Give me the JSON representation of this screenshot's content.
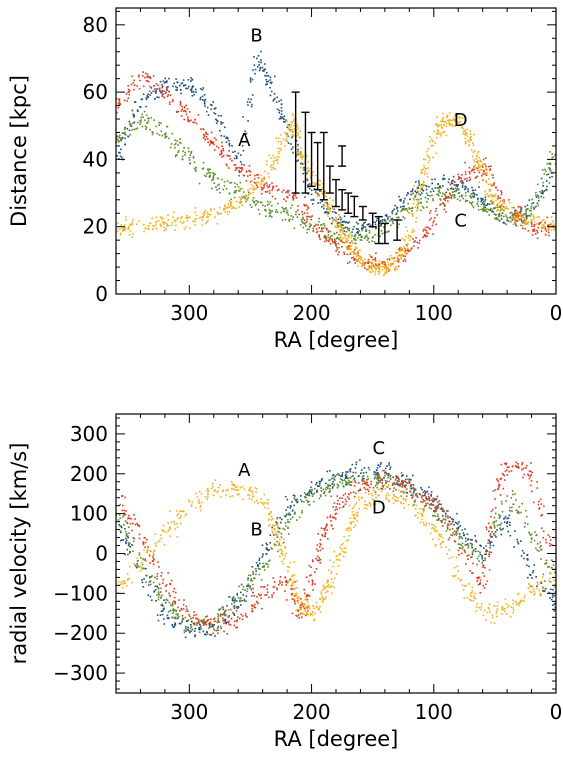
{
  "chart_data": [
    {
      "type": "scatter",
      "xlabel": "RA [degree]",
      "ylabel": "Distance [kpc]",
      "xlim": [
        360,
        0
      ],
      "ylim": [
        0,
        85
      ],
      "x_ticks": [
        300,
        200,
        100,
        0
      ],
      "y_ticks": [
        0,
        20,
        40,
        60,
        80
      ],
      "grid": false,
      "legend": "none",
      "colors": {
        "blue": "#1f4e79",
        "green": "#5a8f29",
        "red": "#e03a1e",
        "orange": "#f0b21b",
        "errorbars": "#000000"
      },
      "series": [
        {
          "color": "blue",
          "points": [
            [
              360,
              40
            ],
            [
              340,
              58
            ],
            [
              320,
              62
            ],
            [
              300,
              62
            ],
            [
              280,
              55
            ],
            [
              260,
              38
            ],
            [
              245,
              72
            ],
            [
              230,
              58
            ],
            [
              215,
              45
            ],
            [
              200,
              30
            ],
            [
              180,
              22
            ],
            [
              160,
              20
            ],
            [
              140,
              22
            ],
            [
              120,
              30
            ],
            [
              100,
              33
            ],
            [
              80,
              33
            ],
            [
              60,
              28
            ],
            [
              40,
              22
            ],
            [
              20,
              25
            ],
            [
              0,
              40
            ]
          ]
        },
        {
          "color": "green",
          "points": [
            [
              360,
              45
            ],
            [
              340,
              52
            ],
            [
              320,
              48
            ],
            [
              300,
              40
            ],
            [
              280,
              34
            ],
            [
              260,
              30
            ],
            [
              240,
              26
            ],
            [
              220,
              24
            ],
            [
              200,
              20
            ],
            [
              180,
              17
            ],
            [
              160,
              17
            ],
            [
              140,
              20
            ],
            [
              120,
              25
            ],
            [
              100,
              30
            ],
            [
              80,
              30
            ],
            [
              60,
              26
            ],
            [
              40,
              22
            ],
            [
              20,
              25
            ],
            [
              0,
              45
            ]
          ]
        },
        {
          "color": "red",
          "points": [
            [
              360,
              55
            ],
            [
              340,
              65
            ],
            [
              320,
              60
            ],
            [
              300,
              52
            ],
            [
              280,
              45
            ],
            [
              260,
              38
            ],
            [
              240,
              32
            ],
            [
              220,
              30
            ],
            [
              200,
              22
            ],
            [
              180,
              15
            ],
            [
              160,
              10
            ],
            [
              140,
              9
            ],
            [
              120,
              14
            ],
            [
              100,
              22
            ],
            [
              80,
              35
            ],
            [
              60,
              38
            ],
            [
              40,
              26
            ],
            [
              20,
              20
            ],
            [
              0,
              20
            ]
          ]
        },
        {
          "color": "orange",
          "points": [
            [
              360,
              20
            ],
            [
              340,
              20
            ],
            [
              320,
              21
            ],
            [
              300,
              22
            ],
            [
              280,
              24
            ],
            [
              260,
              27
            ],
            [
              240,
              35
            ],
            [
              225,
              45
            ],
            [
              215,
              52
            ],
            [
              210,
              42
            ],
            [
              200,
              35
            ],
            [
              190,
              28
            ],
            [
              180,
              22
            ],
            [
              170,
              15
            ],
            [
              160,
              10
            ],
            [
              150,
              8
            ],
            [
              140,
              8
            ],
            [
              130,
              10
            ],
            [
              120,
              18
            ],
            [
              110,
              35
            ],
            [
              100,
              48
            ],
            [
              90,
              52
            ],
            [
              80,
              52
            ],
            [
              70,
              45
            ],
            [
              60,
              35
            ],
            [
              50,
              28
            ],
            [
              40,
              24
            ],
            [
              20,
              22
            ],
            [
              0,
              20
            ]
          ]
        }
      ],
      "errorbars": [
        {
          "x": 213,
          "y": 45,
          "err": 15
        },
        {
          "x": 205,
          "y": 42,
          "err": 12
        },
        {
          "x": 200,
          "y": 40,
          "err": 8
        },
        {
          "x": 195,
          "y": 38,
          "err": 7
        },
        {
          "x": 190,
          "y": 38,
          "err": 10
        },
        {
          "x": 185,
          "y": 34,
          "err": 4
        },
        {
          "x": 180,
          "y": 30,
          "err": 4
        },
        {
          "x": 175,
          "y": 28,
          "err": 3
        },
        {
          "x": 170,
          "y": 27,
          "err": 3
        },
        {
          "x": 165,
          "y": 26,
          "err": 3
        },
        {
          "x": 158,
          "y": 24,
          "err": 2
        },
        {
          "x": 150,
          "y": 22,
          "err": 2
        },
        {
          "x": 145,
          "y": 19,
          "err": 4
        },
        {
          "x": 140,
          "y": 18,
          "err": 3
        },
        {
          "x": 130,
          "y": 19,
          "err": 3
        },
        {
          "x": 175,
          "y": 41,
          "err": 3
        }
      ],
      "annotations": [
        {
          "text": "B",
          "x": 245,
          "y": 75
        },
        {
          "text": "A",
          "x": 255,
          "y": 44
        },
        {
          "text": "D",
          "x": 78,
          "y": 50
        },
        {
          "text": "C",
          "x": 78,
          "y": 20
        }
      ]
    },
    {
      "type": "scatter",
      "xlabel": "RA [degree]",
      "ylabel": "radial velocity [km/s]",
      "xlim": [
        360,
        0
      ],
      "ylim": [
        -350,
        350
      ],
      "x_ticks": [
        300,
        200,
        100,
        0
      ],
      "y_ticks": [
        -300,
        -200,
        -100,
        0,
        100,
        200,
        300
      ],
      "grid": false,
      "legend": "none",
      "colors": {
        "blue": "#1f4e79",
        "green": "#5a8f29",
        "red": "#e03a1e",
        "orange": "#f0b21b"
      },
      "series": [
        {
          "color": "blue",
          "points": [
            [
              360,
              90
            ],
            [
              340,
              -50
            ],
            [
              320,
              -150
            ],
            [
              300,
              -190
            ],
            [
              280,
              -180
            ],
            [
              260,
              -120
            ],
            [
              240,
              0
            ],
            [
              220,
              120
            ],
            [
              200,
              160
            ],
            [
              180,
              195
            ],
            [
              160,
              210
            ],
            [
              140,
              205
            ],
            [
              120,
              180
            ],
            [
              100,
              130
            ],
            [
              80,
              70
            ],
            [
              60,
              0
            ],
            [
              40,
              100
            ],
            [
              20,
              -60
            ],
            [
              0,
              -120
            ]
          ]
        },
        {
          "color": "green",
          "points": [
            [
              360,
              110
            ],
            [
              340,
              -20
            ],
            [
              320,
              -120
            ],
            [
              300,
              -180
            ],
            [
              280,
              -170
            ],
            [
              260,
              -110
            ],
            [
              240,
              -30
            ],
            [
              220,
              80
            ],
            [
              200,
              150
            ],
            [
              180,
              180
            ],
            [
              160,
              190
            ],
            [
              140,
              185
            ],
            [
              120,
              160
            ],
            [
              100,
              110
            ],
            [
              80,
              40
            ],
            [
              60,
              -20
            ],
            [
              40,
              150
            ],
            [
              20,
              50
            ],
            [
              0,
              -80
            ]
          ]
        },
        {
          "color": "red",
          "points": [
            [
              360,
              150
            ],
            [
              340,
              40
            ],
            [
              320,
              -80
            ],
            [
              300,
              -160
            ],
            [
              280,
              -180
            ],
            [
              260,
              -160
            ],
            [
              240,
              -100
            ],
            [
              220,
              -60
            ],
            [
              210,
              -150
            ],
            [
              200,
              -60
            ],
            [
              190,
              50
            ],
            [
              180,
              120
            ],
            [
              160,
              175
            ],
            [
              140,
              185
            ],
            [
              120,
              170
            ],
            [
              100,
              120
            ],
            [
              80,
              30
            ],
            [
              60,
              -80
            ],
            [
              50,
              150
            ],
            [
              40,
              230
            ],
            [
              20,
              200
            ],
            [
              0,
              -60
            ]
          ]
        },
        {
          "color": "orange",
          "points": [
            [
              360,
              -80
            ],
            [
              340,
              -20
            ],
            [
              320,
              60
            ],
            [
              300,
              120
            ],
            [
              280,
              160
            ],
            [
              260,
              165
            ],
            [
              240,
              130
            ],
            [
              230,
              60
            ],
            [
              220,
              -30
            ],
            [
              210,
              -120
            ],
            [
              200,
              -150
            ],
            [
              190,
              -100
            ],
            [
              180,
              -20
            ],
            [
              170,
              70
            ],
            [
              160,
              130
            ],
            [
              140,
              150
            ],
            [
              120,
              130
            ],
            [
              100,
              60
            ],
            [
              80,
              -60
            ],
            [
              60,
              -150
            ],
            [
              40,
              -140
            ],
            [
              20,
              -90
            ],
            [
              0,
              -60
            ]
          ]
        }
      ],
      "annotations": [
        {
          "text": "A",
          "x": 255,
          "y": 195
        },
        {
          "text": "B",
          "x": 245,
          "y": 45
        },
        {
          "text": "C",
          "x": 145,
          "y": 250
        },
        {
          "text": "D",
          "x": 145,
          "y": 100
        }
      ]
    }
  ]
}
